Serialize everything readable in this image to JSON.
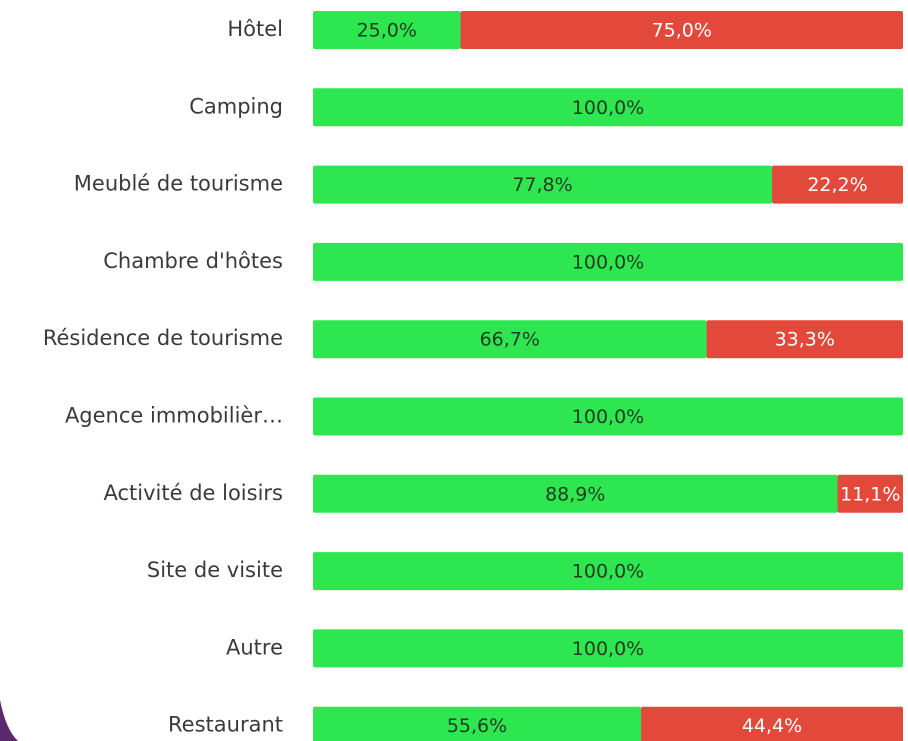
{
  "chart_data": {
    "type": "stacked-bar-horizontal",
    "categories": [
      "Hôtel",
      "Camping",
      "Meublé de tourisme",
      "Chambre d'hôtes",
      "Résidence de tourisme",
      "Agence immobilièr…",
      "Activité de loisirs",
      "Site de visite",
      "Autre",
      "Restaurant"
    ],
    "xlim": [
      0,
      100
    ],
    "series": [
      {
        "color": "#2ee64f",
        "values": [
          25.0,
          100.0,
          77.8,
          100.0,
          66.7,
          100.0,
          88.9,
          100.0,
          100.0,
          55.6
        ],
        "value_labels": [
          "25,0%",
          "100,0%",
          "77,8%",
          "100,0%",
          "66,7%",
          "100,0%",
          "88,9%",
          "100,0%",
          "100,0%",
          "55,6%"
        ]
      },
      {
        "color": "#e2493a",
        "values": [
          75.0,
          null,
          22.2,
          null,
          33.3,
          null,
          11.1,
          null,
          null,
          44.4
        ],
        "value_labels": [
          "75,0%",
          null,
          "22,2%",
          null,
          "33,3%",
          null,
          "11,1%",
          null,
          null,
          "44,4%"
        ]
      }
    ]
  }
}
